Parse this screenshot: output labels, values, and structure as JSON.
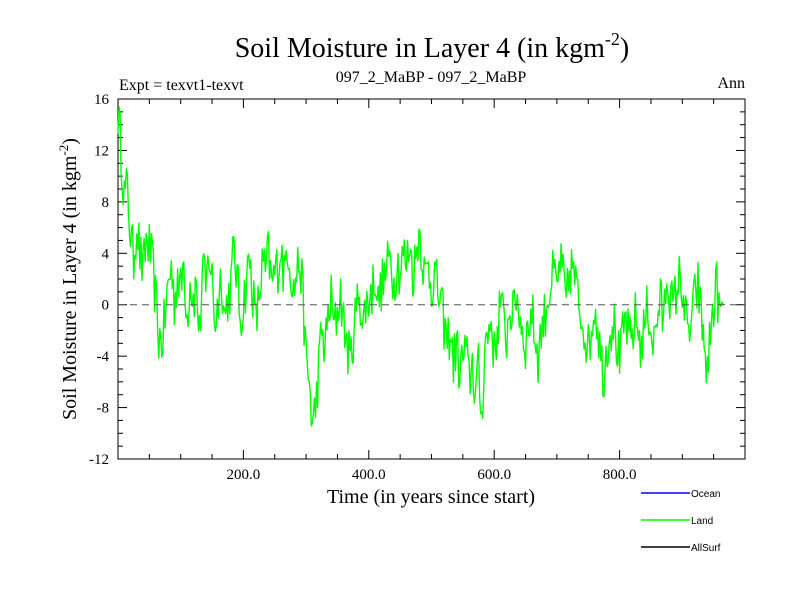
{
  "chart_data": {
    "type": "line",
    "title": "Soil Moisture in Layer 4 (in kgm",
    "title_sup": "-2",
    "title_close": ")",
    "subtitle_left": "Expt = texvt1-texvt",
    "subtitle_center": "097_2_MaBP - 097_2_MaBP",
    "subtitle_right": "Ann",
    "xlabel": "Time (in years since start)",
    "ylabel": "Soil Moisture in Layer 4 (in kgm",
    "ylabel_sup": "-2",
    "ylabel_close": ")",
    "xlim": [
      0,
      1000
    ],
    "ylim": [
      -12,
      16
    ],
    "x_ticks": [
      200,
      400,
      600,
      800
    ],
    "x_tick_labels": [
      "200.0",
      "400.0",
      "600.0",
      "800.0"
    ],
    "y_ticks": [
      -12,
      -8,
      -4,
      0,
      4,
      8,
      12,
      16
    ],
    "y_tick_labels": [
      "-12",
      "-8",
      "-4",
      "0",
      "4",
      "8",
      "12",
      "16"
    ],
    "reference_line": 0,
    "legend": [
      {
        "name": "Ocean",
        "color": "#0000ff"
      },
      {
        "name": "Land",
        "color": "#00ff00"
      },
      {
        "name": "AllSurf",
        "color": "#000000"
      }
    ],
    "series": [
      {
        "name": "Land",
        "color": "#00ff00",
        "x_start": 0,
        "x_step": 5,
        "values": [
          15.0,
          12.0,
          8.5,
          9.0,
          5.5,
          3.5,
          6.5,
          4.0,
          2.5,
          5.0,
          4.5,
          3.0,
          0.5,
          -2.5,
          -3.0,
          -1.0,
          1.5,
          3.0,
          0.0,
          2.5,
          1.0,
          3.5,
          -1.0,
          2.0,
          0.5,
          1.5,
          -2.5,
          3.0,
          1.0,
          4.0,
          2.0,
          -1.5,
          0.5,
          2.5,
          -1.0,
          0.5,
          1.5,
          4.5,
          2.0,
          -1.0,
          0.0,
          2.0,
          3.5,
          1.0,
          -1.5,
          0.5,
          3.0,
          2.5,
          4.0,
          1.5,
          2.5,
          3.0,
          4.5,
          2.0,
          5.0,
          3.0,
          1.0,
          2.5,
          3.5,
          0.5,
          -4.5,
          -6.0,
          -9.5,
          -8.0,
          -5.0,
          -2.0,
          -3.5,
          -1.0,
          0.5,
          -2.0,
          -0.5,
          1.0,
          -1.5,
          -3.0,
          -4.5,
          -2.5,
          -0.5,
          1.5,
          -2.0,
          0.0,
          0.5,
          1.0,
          2.5,
          0.0,
          1.5,
          2.0,
          3.0,
          4.0,
          1.5,
          3.5,
          2.5,
          4.0,
          3.0,
          5.0,
          2.5,
          3.5,
          6.0,
          4.0,
          2.0,
          3.0,
          1.5,
          2.5,
          1.0,
          0.0,
          -1.5,
          -3.0,
          -2.0,
          -4.5,
          -3.0,
          -5.5,
          -4.0,
          -3.5,
          -6.0,
          -4.5,
          -7.0,
          -5.0,
          -9.0,
          -3.0,
          -2.5,
          -1.0,
          -4.0,
          -2.0,
          0.5,
          -1.5,
          -2.5,
          0.0,
          -1.0,
          1.0,
          -0.5,
          -2.0,
          -3.0,
          -1.5,
          -0.5,
          -2.5,
          -4.0,
          -2.0,
          -1.0,
          0.5,
          1.5,
          2.5,
          1.0,
          3.5,
          2.0,
          0.0,
          2.5,
          3.0,
          1.5,
          0.0,
          -1.0,
          -2.0,
          -3.5,
          -2.0,
          0.0,
          -1.5,
          -4.0,
          -5.5,
          -3.0,
          -2.0,
          -1.0,
          -3.0,
          -4.5,
          -2.5,
          -1.0,
          -3.0,
          -2.5,
          -1.0,
          -2.0,
          -3.5,
          -1.5,
          0.0,
          -2.0,
          -3.0,
          -1.0,
          0.5,
          -1.5,
          2.5,
          1.0,
          -0.5,
          1.0,
          2.0,
          1.5,
          -1.0,
          -2.5,
          -1.0,
          0.5,
          1.5,
          -1.0,
          -3.0,
          -5.5,
          -2.0,
          0.0,
          1.5,
          -1.0,
          0.0
        ],
        "values_note": "values are approximate readings of the plotted line, 5-year resolution"
      }
    ]
  }
}
